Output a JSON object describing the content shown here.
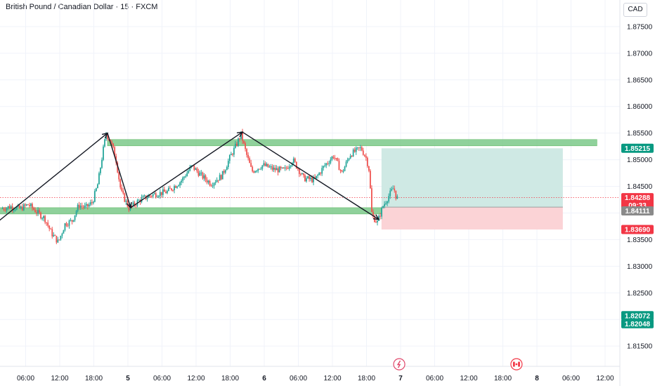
{
  "header": {
    "title": "British Pound / Canadian Dollar · 15 · FXCM",
    "currency": "CAD"
  },
  "colors": {
    "up": "#26a69a",
    "down": "#ef5350",
    "zone": "#7cc98a",
    "grid": "#f0f3fa",
    "tag_green": "#089981",
    "tag_red": "#f23645",
    "price_tag": "#f23645",
    "target_fill": "#cfe9e4",
    "stop_fill": "#fbd3d6"
  },
  "chart_data": {
    "type": "candlestick",
    "title": "British Pound / Canadian Dollar · 15 · FXCM",
    "ylim": [
      1.8112,
      1.88
    ],
    "y_ticks": [
      "1.87500",
      "1.87000",
      "1.86500",
      "1.86000",
      "1.85500",
      "1.85000",
      "1.84500",
      "1.84000",
      "1.83500",
      "1.83000",
      "1.82500",
      "1.82000",
      "1.81500"
    ],
    "x_ticks": [
      {
        "label": "06:00",
        "day": 3.25
      },
      {
        "label": "12:00",
        "day": 3.5
      },
      {
        "label": "18:00",
        "day": 3.75
      },
      {
        "label": "5",
        "day": 4.0,
        "bold": true
      },
      {
        "label": "06:00",
        "day": 4.25
      },
      {
        "label": "12:00",
        "day": 4.5
      },
      {
        "label": "18:00",
        "day": 4.75
      },
      {
        "label": "6",
        "day": 5.0,
        "bold": true
      },
      {
        "label": "06:00",
        "day": 5.25
      },
      {
        "label": "12:00",
        "day": 5.5
      },
      {
        "label": "18:00",
        "day": 5.75
      },
      {
        "label": "7",
        "day": 6.0,
        "bold": true
      },
      {
        "label": "06:00",
        "day": 6.25
      },
      {
        "label": "12:00",
        "day": 6.5
      },
      {
        "label": "18:00",
        "day": 6.75
      },
      {
        "label": "8",
        "day": 7.0,
        "bold": true
      },
      {
        "label": "06:00",
        "day": 7.25
      },
      {
        "label": "12:00",
        "day": 7.5
      }
    ],
    "price_path": [
      {
        "day": 3.08,
        "price": 1.8408
      },
      {
        "day": 3.15,
        "price": 1.8412
      },
      {
        "day": 3.22,
        "price": 1.8408
      },
      {
        "day": 3.28,
        "price": 1.8416
      },
      {
        "day": 3.35,
        "price": 1.84
      },
      {
        "day": 3.4,
        "price": 1.839
      },
      {
        "day": 3.45,
        "price": 1.8362
      },
      {
        "day": 3.5,
        "price": 1.8345
      },
      {
        "day": 3.55,
        "price": 1.838
      },
      {
        "day": 3.6,
        "price": 1.8385
      },
      {
        "day": 3.65,
        "price": 1.8415
      },
      {
        "day": 3.7,
        "price": 1.841
      },
      {
        "day": 3.75,
        "price": 1.842
      },
      {
        "day": 3.79,
        "price": 1.8455
      },
      {
        "day": 3.83,
        "price": 1.852
      },
      {
        "day": 3.85,
        "price": 1.8548
      },
      {
        "day": 3.88,
        "price": 1.8538
      },
      {
        "day": 3.92,
        "price": 1.8505
      },
      {
        "day": 3.96,
        "price": 1.844
      },
      {
        "day": 4.02,
        "price": 1.8408
      },
      {
        "day": 4.1,
        "price": 1.8425
      },
      {
        "day": 4.2,
        "price": 1.8435
      },
      {
        "day": 4.3,
        "price": 1.844
      },
      {
        "day": 4.4,
        "price": 1.846
      },
      {
        "day": 4.48,
        "price": 1.8488
      },
      {
        "day": 4.55,
        "price": 1.847
      },
      {
        "day": 4.62,
        "price": 1.8455
      },
      {
        "day": 4.7,
        "price": 1.847
      },
      {
        "day": 4.76,
        "price": 1.8505
      },
      {
        "day": 4.8,
        "price": 1.8525
      },
      {
        "day": 4.84,
        "price": 1.8548
      },
      {
        "day": 4.88,
        "price": 1.851
      },
      {
        "day": 4.92,
        "price": 1.8478
      },
      {
        "day": 5.0,
        "price": 1.849
      },
      {
        "day": 5.08,
        "price": 1.8482
      },
      {
        "day": 5.16,
        "price": 1.848
      },
      {
        "day": 5.22,
        "price": 1.85
      },
      {
        "day": 5.3,
        "price": 1.8465
      },
      {
        "day": 5.38,
        "price": 1.8462
      },
      {
        "day": 5.45,
        "price": 1.8488
      },
      {
        "day": 5.52,
        "price": 1.8508
      },
      {
        "day": 5.58,
        "price": 1.8475
      },
      {
        "day": 5.64,
        "price": 1.851
      },
      {
        "day": 5.72,
        "price": 1.8522
      },
      {
        "day": 5.76,
        "price": 1.8502
      },
      {
        "day": 5.78,
        "price": 1.848
      },
      {
        "day": 5.8,
        "price": 1.8395
      },
      {
        "day": 5.84,
        "price": 1.8382
      },
      {
        "day": 5.88,
        "price": 1.8412
      },
      {
        "day": 5.93,
        "price": 1.8435
      },
      {
        "day": 5.96,
        "price": 1.8448
      },
      {
        "day": 5.98,
        "price": 1.8428
      }
    ],
    "zones": [
      {
        "name": "resistance",
        "day_start": 3.85,
        "day_end": 7.44,
        "price_low": 1.8532,
        "price_high": 1.8538
      },
      {
        "name": "support",
        "day_start": 3.0,
        "day_end": 6.33,
        "price_low": 1.8404,
        "price_high": 1.841
      }
    ],
    "position": {
      "day_start": 5.86,
      "day_end": 7.19,
      "entry": 1.84111,
      "target": 1.85215,
      "stop": 1.8369
    },
    "trend_lines": [
      {
        "from": {
          "day": 3.0,
          "price": 1.8374
        },
        "to": {
          "day": 3.85,
          "price": 1.855
        }
      },
      {
        "from": {
          "day": 3.85,
          "price": 1.855
        },
        "to": {
          "day": 4.02,
          "price": 1.841
        }
      },
      {
        "from": {
          "day": 4.02,
          "price": 1.841
        },
        "to": {
          "day": 4.84,
          "price": 1.8552
        }
      },
      {
        "from": {
          "day": 4.84,
          "price": 1.8552
        },
        "to": {
          "day": 5.84,
          "price": 1.8388
        }
      }
    ],
    "current_price_line": 1.84288,
    "price_tags": [
      {
        "label": "1.85215",
        "price": 1.85215,
        "color": "#089981"
      },
      {
        "label": "1.84288",
        "price": 1.84288,
        "color": "#f23645",
        "sub": "09:33"
      },
      {
        "label": "1.84111",
        "price": 1.8404,
        "color": "#8a8a8a"
      },
      {
        "label": "1.83690",
        "price": 1.8369,
        "color": "#f23645"
      },
      {
        "label": "1.82072",
        "price": 1.82072,
        "color": "#089981"
      },
      {
        "label": "1.82048",
        "price": 1.8192,
        "color": "#089981"
      }
    ],
    "event_icons": [
      {
        "name": "lightning-event-icon",
        "day": 5.99
      },
      {
        "name": "canada-flag-icon",
        "day": 6.85
      }
    ]
  }
}
